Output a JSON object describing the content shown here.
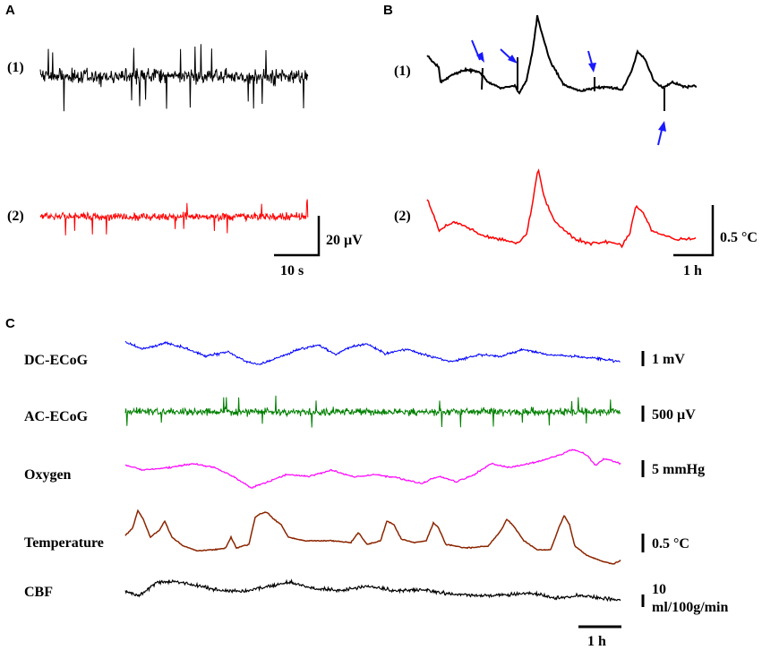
{
  "panels": {
    "A": {
      "letter": "A",
      "trace1": {
        "label": "(1)",
        "color": "#000000"
      },
      "trace2": {
        "label": "(2)",
        "color": "#ff0000"
      },
      "scale_y": "20 µV",
      "scale_x": "10 s"
    },
    "B": {
      "letter": "B",
      "trace1": {
        "label": "(1)",
        "color": "#000000"
      },
      "trace2": {
        "label": "(2)",
        "color": "#ff0000"
      },
      "arrow_color": "#1a1aff",
      "scale_y": "0.5 °C",
      "scale_x": "1 h"
    },
    "C": {
      "letter": "C",
      "channels": [
        {
          "name": "DC-ECoG",
          "color": "#0000ff",
          "scale": "1 mV"
        },
        {
          "name": "AC-ECoG",
          "color": "#008000",
          "scale": "500 µV"
        },
        {
          "name": "Oxygen",
          "color": "#ff00ff",
          "scale": "5 mmHg"
        },
        {
          "name": "Temperature",
          "color": "#8b2500",
          "scale": "0.5 °C"
        },
        {
          "name": "CBF",
          "color": "#000000",
          "scale_line1": "10",
          "scale_line2": "ml/100g/min"
        }
      ],
      "scale_x": "1 h"
    }
  }
}
